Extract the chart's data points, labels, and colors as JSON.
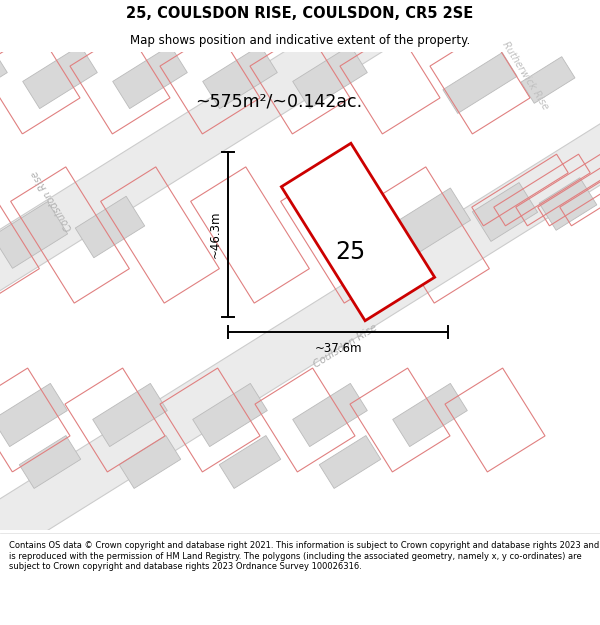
{
  "title": "25, COULSDON RISE, COULSDON, CR5 2SE",
  "subtitle": "Map shows position and indicative extent of the property.",
  "area_text": "~575m²/~0.142ac.",
  "dim_height": "~46.3m",
  "dim_width": "~37.6m",
  "plot_number": "25",
  "footer_text": "Contains OS data © Crown copyright and database right 2021. This information is subject to Crown copyright and database rights 2023 and is reproduced with the permission of HM Land Registry. The polygons (including the associated geometry, namely x, y co-ordinates) are subject to Crown copyright and database rights 2023 Ordnance Survey 100026316.",
  "map_bg": "#f7f6f6",
  "road_fill": "#ebebeb",
  "road_edge": "#cccccc",
  "building_fill": "#d8d8d8",
  "building_edge": "#bbbbbb",
  "plot_boundary_color": "#e08080",
  "plot_edge": "#cc0000",
  "street_label_color": "#b0b0b0",
  "rutherwick_color": "#c0c0c0"
}
